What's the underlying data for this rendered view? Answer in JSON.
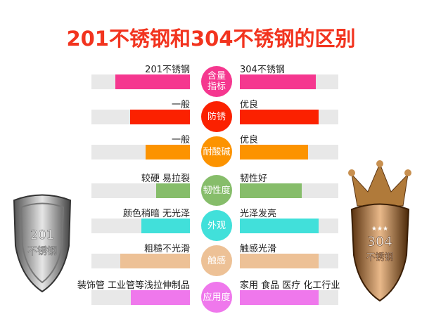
{
  "title": "201不锈钢和304不锈钢的区别",
  "rows": [
    {
      "category": "含量指标",
      "color": "#f5378f",
      "left_label": "201不锈钢",
      "right_label": "304不锈钢",
      "left_fill": 0.76,
      "right_fill": 0.77
    },
    {
      "category": "防锈",
      "color": "#fb2100",
      "left_label": "一般",
      "right_label": "优良",
      "left_fill": 0.61,
      "right_fill": 0.8
    },
    {
      "category": "耐酸碱",
      "color": "#fc9300",
      "left_label": "一般",
      "right_label": "优良",
      "left_fill": 0.45,
      "right_fill": 0.69
    },
    {
      "category": "韧性度",
      "color": "#86bd6a",
      "left_label": "较硬 易拉裂",
      "right_label": "韧性好",
      "left_fill": 0.34,
      "right_fill": 0.63
    },
    {
      "category": "外观",
      "color": "#41e0da",
      "left_label": "颜色稍暗 无光泽",
      "right_label": "光泽发亮",
      "left_fill": 0.49,
      "right_fill": 0.8
    },
    {
      "category": "触感",
      "color": "#edc196",
      "left_label": "粗糙不光滑",
      "right_label": "触感光滑",
      "left_fill": 0.71,
      "right_fill": 0.8
    },
    {
      "category": "应用度",
      "color": "#ef78ec",
      "left_label": "装饰管 工业管等浅拉伸制品",
      "right_label": "家用 食品 医疗 化工行业",
      "left_fill": 0.6,
      "right_fill": 0.8
    }
  ],
  "shield_left": {
    "line1": "201",
    "line2": "不锈钢"
  },
  "shield_right": {
    "line1": "304",
    "line2": "不锈钢",
    "stars": "★★★"
  }
}
